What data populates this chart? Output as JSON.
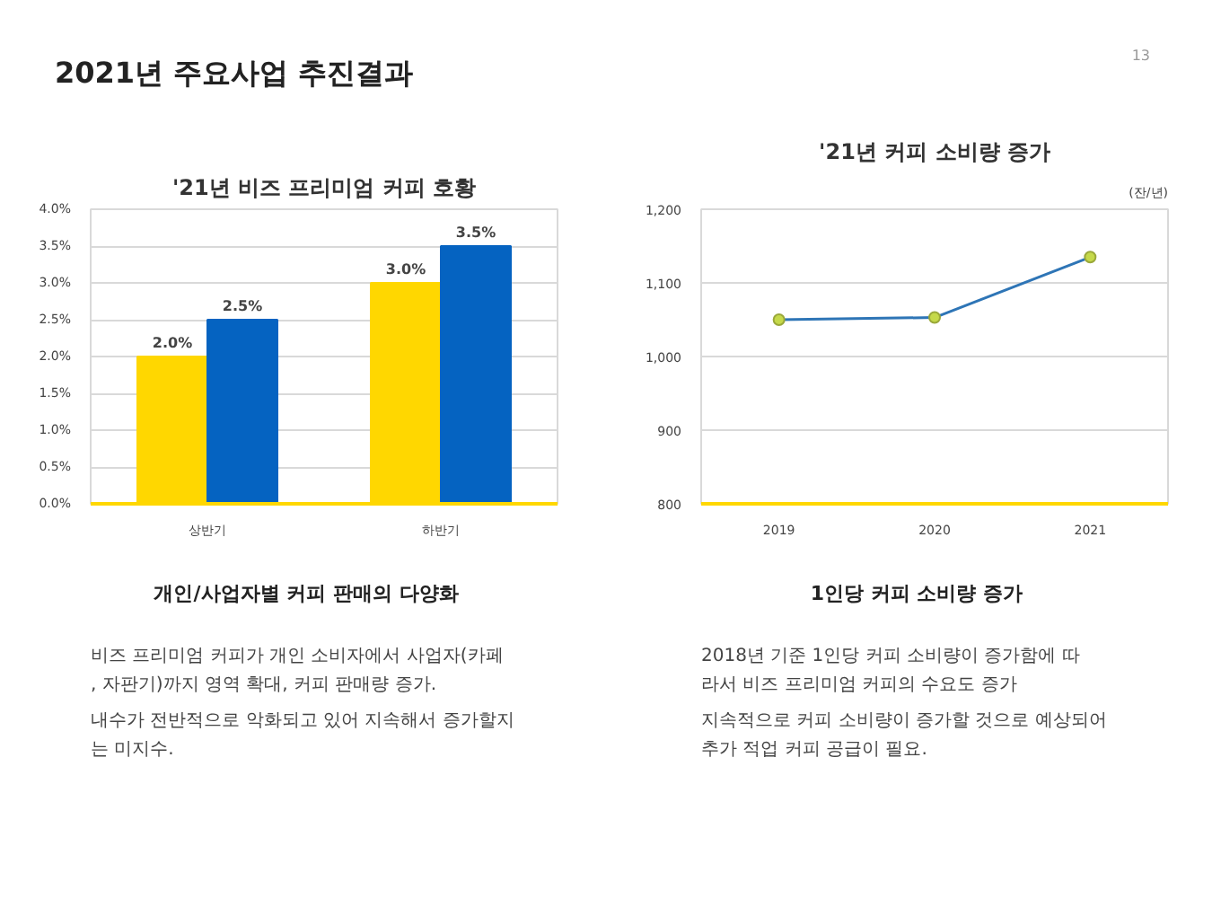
{
  "chart_data": [
    {
      "type": "other",
      "title": "2021년 주요사업 추진결과",
      "annotations": [
        "13"
      ]
    },
    {
      "type": "bar",
      "title": "'21년 비즈 프리미엄 커피 호황",
      "categories": [
        "상반기",
        "하반기"
      ],
      "series": [
        {
          "color": "#ffd700",
          "values": [
            2.0,
            3.0
          ],
          "value_labels": [
            "2.0%",
            "3.0%"
          ]
        },
        {
          "color": "#0563c1",
          "values": [
            2.5,
            3.5
          ],
          "value_labels": [
            "2.5%",
            "3.5%"
          ]
        }
      ],
      "ylim": [
        0,
        4
      ],
      "yticks": [
        {
          "value": 0,
          "label": "0.0%"
        },
        {
          "value": 0.5,
          "label": "0.5%"
        },
        {
          "value": 1,
          "label": "1.0%"
        },
        {
          "value": 1.5,
          "label": "1.5%"
        },
        {
          "value": 2,
          "label": "2.0%"
        },
        {
          "value": 2.5,
          "label": "2.5%"
        },
        {
          "value": 3,
          "label": "3.0%"
        },
        {
          "value": 3.5,
          "label": "3.5%"
        },
        {
          "value": 4,
          "label": "4.0%"
        }
      ],
      "grid": "y"
    },
    {
      "type": "line",
      "title": "'21년 커피 소비량 증가",
      "ylabel": "(잔/년)",
      "categories": [
        "2019",
        "2020",
        "2021"
      ],
      "series": [
        {
          "color": "#2e75b6",
          "values": [
            1050,
            1053,
            1135
          ]
        }
      ],
      "ylim": [
        800,
        1200
      ],
      "yticks": [
        800,
        900,
        {
          "value": 1000,
          "label": "1,000"
        },
        {
          "value": 1100,
          "label": "1,100"
        },
        {
          "value": 1200,
          "label": "1,200"
        }
      ],
      "grid": "y",
      "marker": "circle"
    },
    {
      "type": "other",
      "title": "개인/사업자별 커피 판매의 다양화",
      "annotations": [
        "비즈 프리미엄 커피가 개인 소비자에서 사업자(카페, 자판기)까지 영역 확대, 커피 판매량 증가.",
        "내수가 전반적으로 악화되고 있어 지속해서 증가할지는 미지수."
      ]
    },
    {
      "type": "other",
      "title": "1인당 커피 소비량 증가",
      "annotations": [
        "2018년 기준 1인당 커피 소비량이 증가함에 따라서 비즈 프리미엄 커피의 수요도 증가",
        "지속적으로 커피 소비량이 증가할 것으로 예상되어 추가 적업 커피 공급이 필요."
      ]
    }
  ]
}
